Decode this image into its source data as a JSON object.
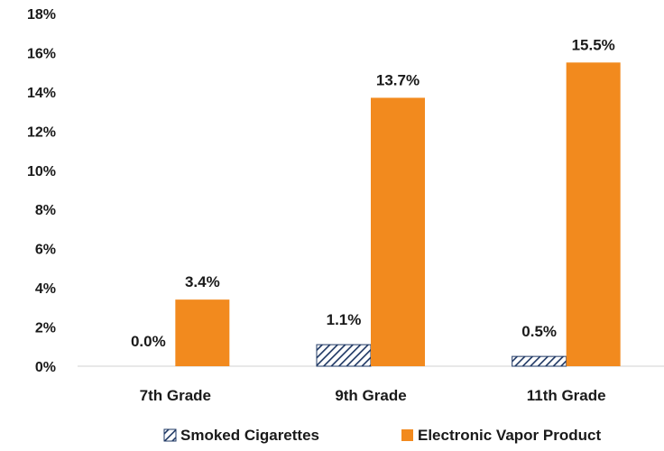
{
  "chart_data": {
    "type": "bar",
    "categories": [
      "7th Grade",
      "9th Grade",
      "11th Grade"
    ],
    "series": [
      {
        "name": "Smoked Cigarettes",
        "values": [
          0.0,
          1.1,
          0.5
        ],
        "labels": [
          "0.0%",
          "1.1%",
          "0.5%"
        ],
        "color": "#1f3864",
        "pattern": "diagonal-hatch"
      },
      {
        "name": "Electronic Vapor Product",
        "values": [
          3.4,
          13.7,
          15.5
        ],
        "labels": [
          "3.4%",
          "13.7%",
          "15.5%"
        ],
        "color": "#f28a1e"
      }
    ],
    "ylim": [
      0,
      18
    ],
    "yticks": [
      0,
      2,
      4,
      6,
      8,
      10,
      12,
      14,
      16,
      18
    ],
    "ytick_labels": [
      "0%",
      "2%",
      "4%",
      "6%",
      "8%",
      "10%",
      "12%",
      "14%",
      "16%",
      "18%"
    ],
    "grid": false,
    "legend_position": "bottom"
  }
}
